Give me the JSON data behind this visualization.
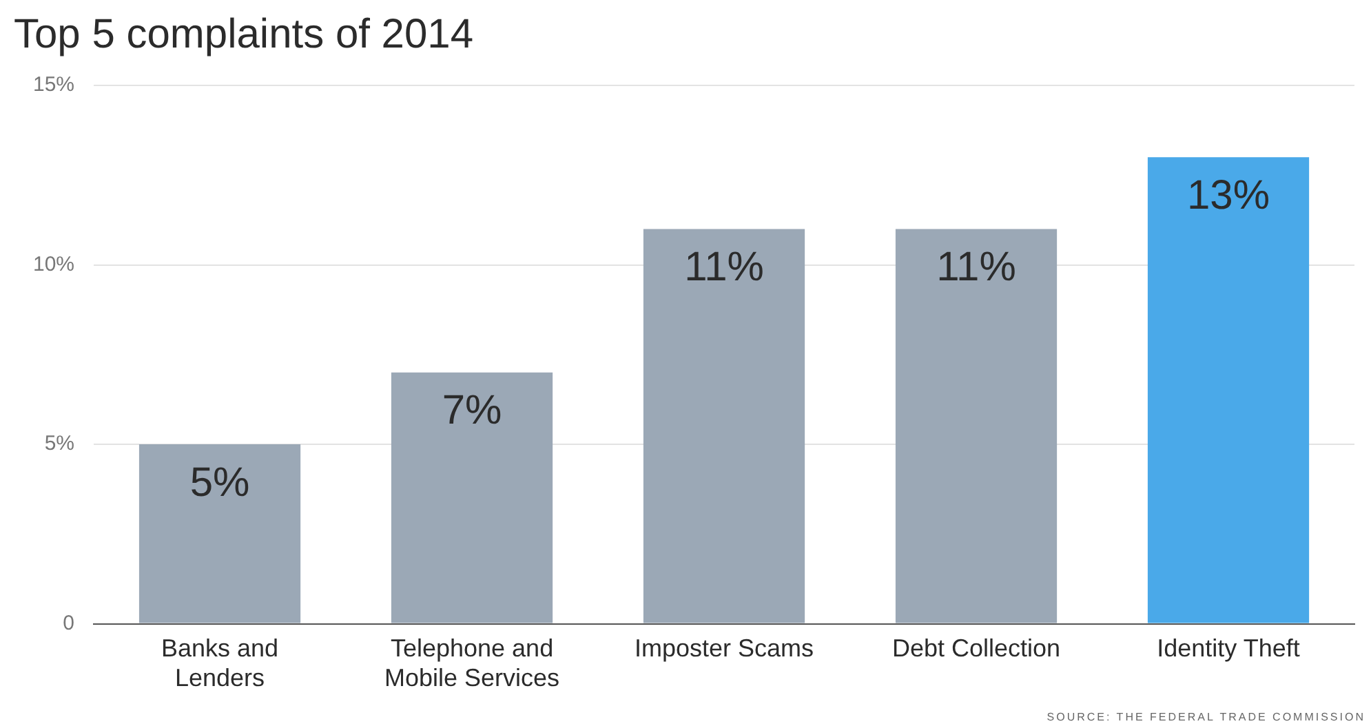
{
  "chart_data": {
    "type": "bar",
    "title": "Top 5 complaints of 2014",
    "categories": [
      "Banks and Lenders",
      "Telephone and Mobile Services",
      "Imposter Scams",
      "Debt Collection",
      "Identity Theft"
    ],
    "values": [
      5,
      7,
      11,
      11,
      13
    ],
    "colors": [
      "#9ba8b6",
      "#9ba8b6",
      "#9ba8b6",
      "#9ba8b6",
      "#4aa9e9"
    ],
    "value_labels": [
      "5%",
      "7%",
      "11%",
      "11%",
      "13%"
    ],
    "ylim": [
      0,
      15
    ],
    "yticks": [
      {
        "value": 0,
        "label": "0"
      },
      {
        "value": 5,
        "label": "5%"
      },
      {
        "value": 10,
        "label": "10%"
      },
      {
        "value": 15,
        "label": "15%"
      }
    ],
    "grid": "y",
    "annotations": [
      "SOURCE: THE FEDERAL TRADE COMMISSION"
    ]
  }
}
